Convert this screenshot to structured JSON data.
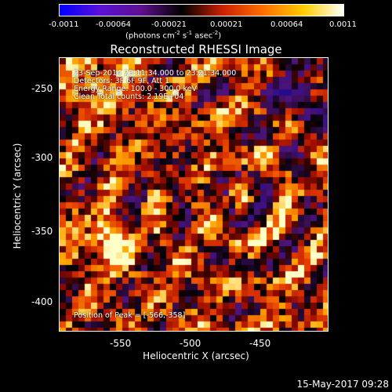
{
  "colorbar": {
    "tick_labels": [
      "-0.0011",
      "-0.00064",
      "-0.00021",
      "0.00021",
      "0.00064",
      "0.0011"
    ],
    "unit_prefix": "(photons cm",
    "unit_exp1": "-2",
    "unit_mid1": " s",
    "unit_exp2": "-1",
    "unit_mid2": " asec",
    "unit_exp3": "-2",
    "unit_suffix": ")",
    "colors": [
      "#0000ff",
      "#5a10d8",
      "#5e0f8c",
      "#000000",
      "#c81e00",
      "#ff6a00",
      "#ffcc00",
      "#ffffff"
    ]
  },
  "title": "Reconstructed RHESSI Image",
  "annotations": {
    "line1": "23-Sep-2014 23:11:34.000 to 23:21:34.000",
    "line2": "Detectors: 3F 6F 9F, Att 1",
    "line3": "Energy Range: 100.0 - 300.0 keV",
    "line4": "Clean    Total counts: 2.19E+04",
    "peak": "Position of Peak = [-566,-358]"
  },
  "axes": {
    "xlabel": "Heliocentric X (arcsec)",
    "ylabel": "Heliocentric Y (arcsec)",
    "xticks": [
      "-550",
      "-500",
      "-450"
    ],
    "yticks": [
      "-250",
      "-300",
      "-350",
      "-400"
    ]
  },
  "footer": "15-May-2017 09:28"
}
